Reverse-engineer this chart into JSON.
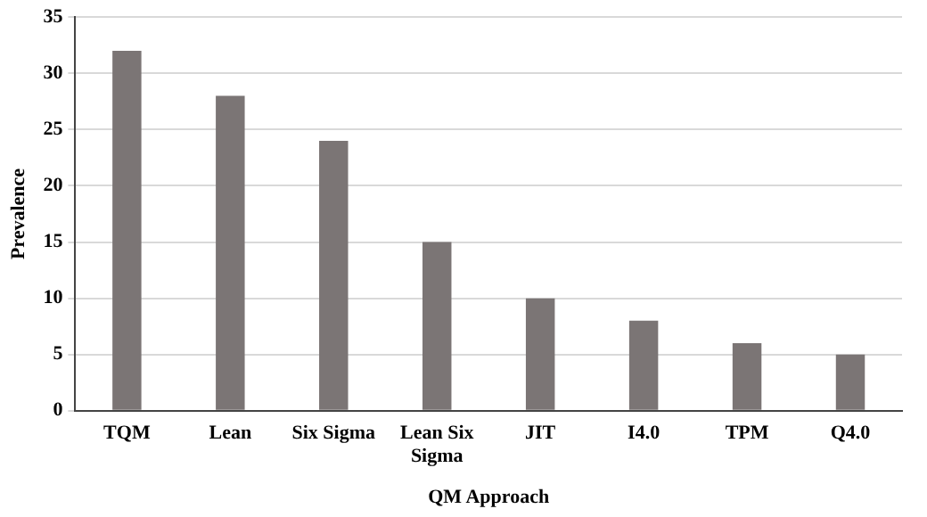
{
  "chart_data": {
    "type": "bar",
    "xlabel": "QM Approach",
    "ylabel": "Prevalence",
    "categories": [
      "TQM",
      "Lean",
      "Six Sigma",
      "Lean Six Sigma",
      "JIT",
      "I4.0",
      "TPM",
      "Q4.0"
    ],
    "values": [
      32,
      28,
      24,
      15,
      10,
      8,
      6,
      5
    ],
    "color": "#7b7575",
    "ylim": [
      0,
      35
    ],
    "yticks": [
      0,
      5,
      10,
      15,
      20,
      25,
      30,
      35
    ],
    "grid": "y",
    "legend": false
  }
}
